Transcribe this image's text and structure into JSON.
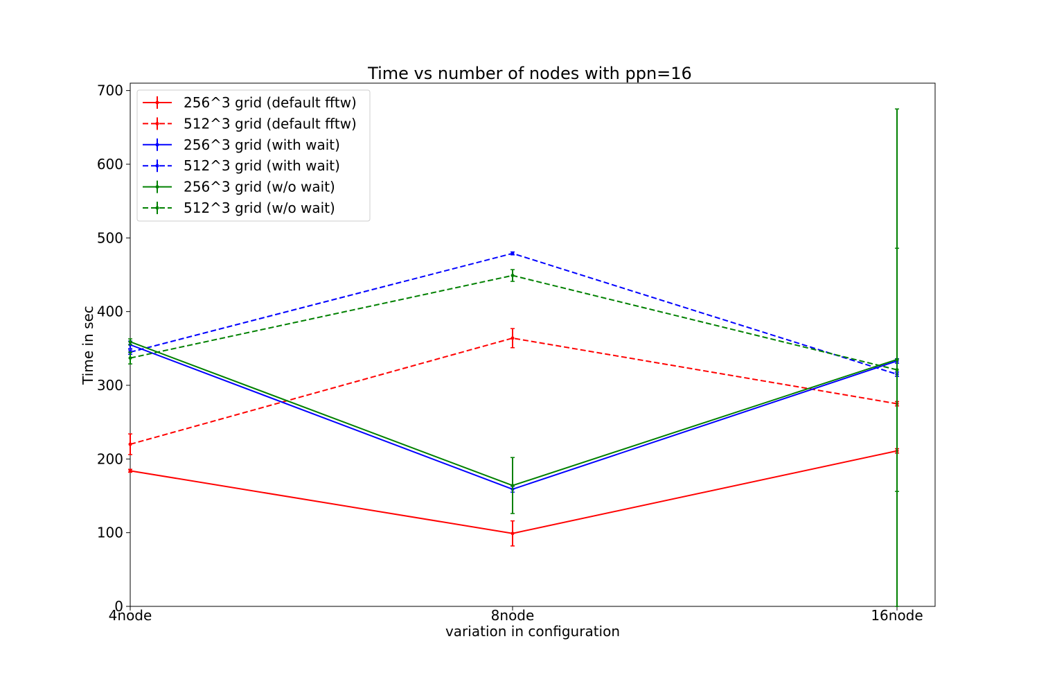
{
  "chart_data": {
    "type": "line",
    "title": "Time vs number of nodes with ppn=16",
    "xlabel": "variation in configuration",
    "ylabel": "Time in sec",
    "categories": [
      "4node",
      "8node",
      "16node"
    ],
    "ylim": [
      0,
      710
    ],
    "yticks": [
      0,
      100,
      200,
      300,
      400,
      500,
      600,
      700
    ],
    "grid": false,
    "legend_position": "top-left",
    "series": [
      {
        "name": "256^3 grid (default fftw)",
        "color": "#ff0000",
        "dashed": false,
        "values": [
          184,
          99,
          211
        ],
        "errors": [
          2,
          17,
          3
        ]
      },
      {
        "name": "512^3 grid (default fftw)",
        "color": "#ff0000",
        "dashed": true,
        "values": [
          220,
          364,
          275
        ],
        "errors": [
          14,
          13,
          3
        ]
      },
      {
        "name": "256^3 grid (with wait)",
        "color": "#0000ff",
        "dashed": false,
        "values": [
          355,
          159,
          333
        ],
        "errors": [
          5,
          4,
          3
        ]
      },
      {
        "name": "512^3 grid (with wait)",
        "color": "#0000ff",
        "dashed": true,
        "values": [
          345,
          479,
          315
        ],
        "errors": [
          3,
          2,
          3
        ]
      },
      {
        "name": "256^3 grid (w/o wait)",
        "color": "#008000",
        "dashed": false,
        "values": [
          359,
          164,
          335
        ],
        "errors": [
          4,
          38,
          340
        ]
      },
      {
        "name": "512^3 grid (w/o wait)",
        "color": "#008000",
        "dashed": true,
        "values": [
          337,
          449,
          321
        ],
        "errors": [
          8,
          8,
          165
        ]
      }
    ]
  }
}
